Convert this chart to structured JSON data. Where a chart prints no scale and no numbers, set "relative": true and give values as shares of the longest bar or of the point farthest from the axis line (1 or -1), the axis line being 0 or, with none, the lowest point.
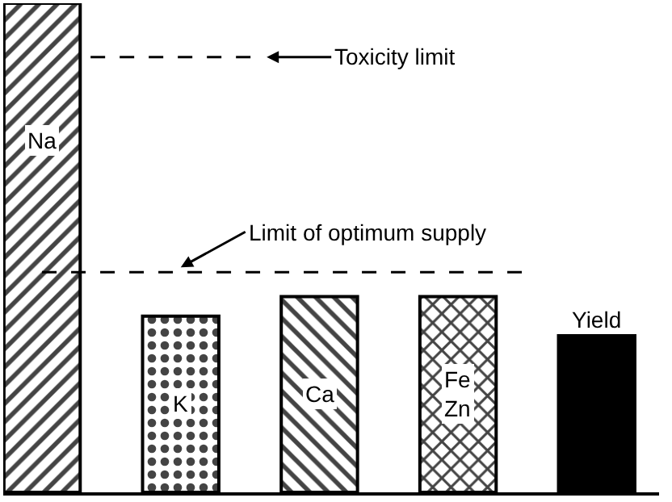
{
  "chart_data": {
    "type": "bar",
    "relative": true,
    "categories": [
      "Na",
      "K",
      "Ca",
      "Fe\nZn",
      "Yield"
    ],
    "values": [
      1,
      0.36,
      0.4,
      0.4,
      0.32
    ],
    "colors": [
      "#000000",
      "#000000",
      "#000000",
      "#000000",
      "#000000"
    ],
    "ref_lines": [
      {
        "axis": "y",
        "value": 0.89,
        "label": "Toxicity limit",
        "line_style": "dashed"
      },
      {
        "axis": "y",
        "value": 0.45,
        "label": "Limit of optimum supply",
        "line_style": "dashed"
      }
    ],
    "grid": false
  }
}
